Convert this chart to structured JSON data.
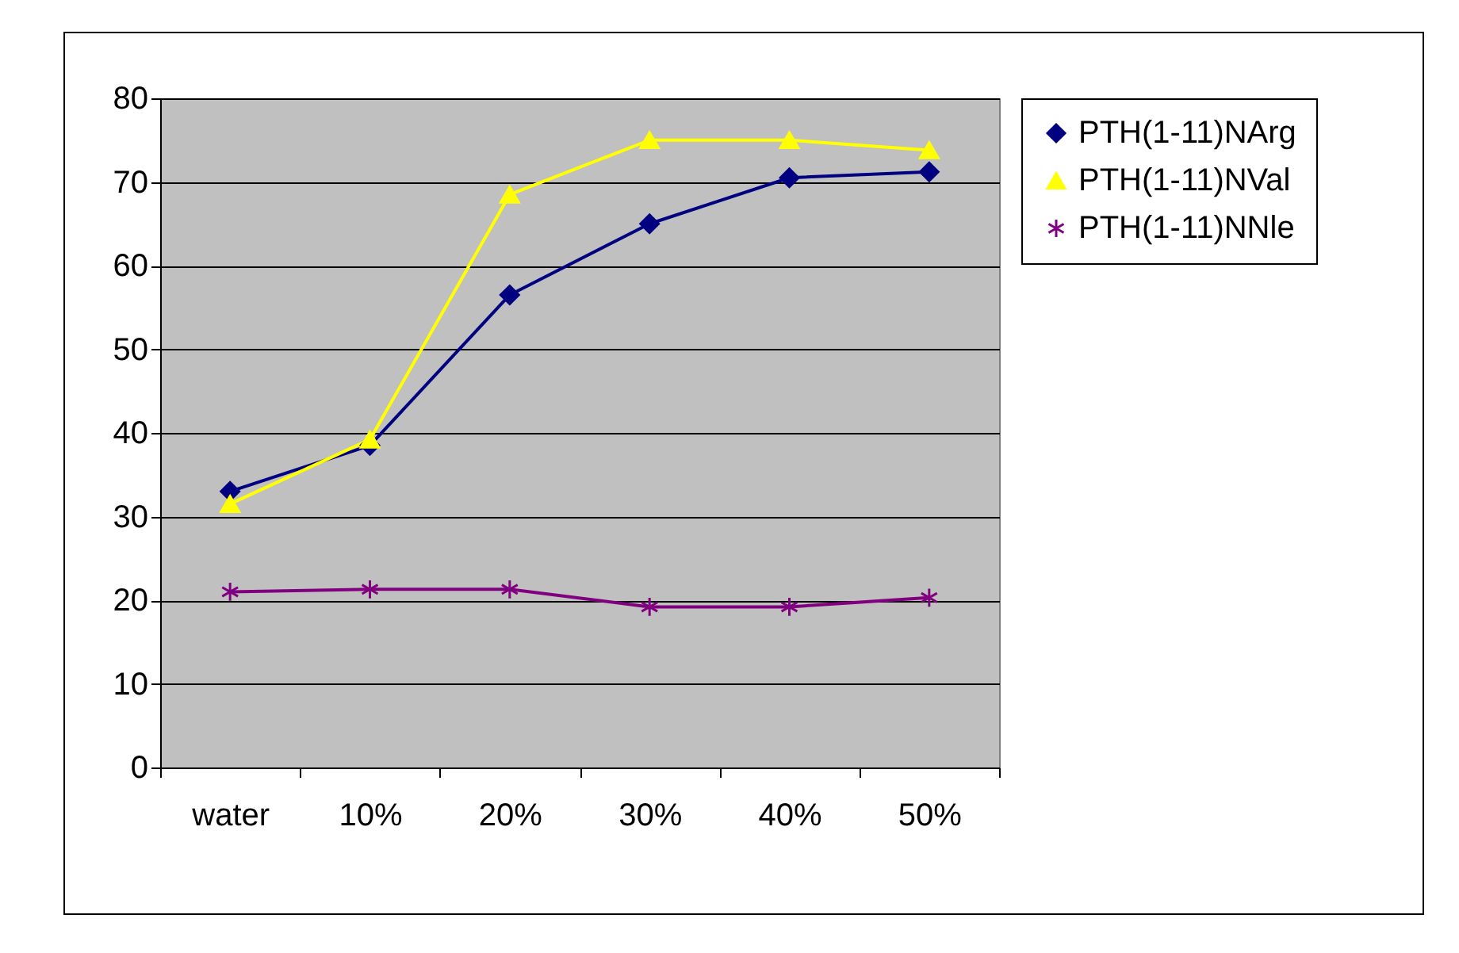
{
  "chart_data": {
    "type": "line",
    "categories": [
      "water",
      "10%",
      "20%",
      "30%",
      "40%",
      "50%"
    ],
    "series": [
      {
        "name": "PTH(1-11)NArg",
        "color": "#000080",
        "marker": "diamond",
        "values": [
          33,
          38.5,
          56.5,
          65,
          70.5,
          71.2
        ]
      },
      {
        "name": "PTH(1-11)NVal",
        "color": "#ffff00",
        "marker": "triangle",
        "values": [
          31.5,
          39.2,
          68.5,
          75,
          75,
          73.8
        ]
      },
      {
        "name": "PTH(1-11)NNle",
        "color": "#800080",
        "marker": "cross",
        "values": [
          21,
          21.3,
          21.3,
          19.2,
          19.2,
          20.3
        ]
      }
    ],
    "ylim": [
      0,
      80
    ],
    "yticks": [
      0,
      10,
      20,
      30,
      40,
      50,
      60,
      70,
      80
    ],
    "grid": "y",
    "legend": "right"
  }
}
